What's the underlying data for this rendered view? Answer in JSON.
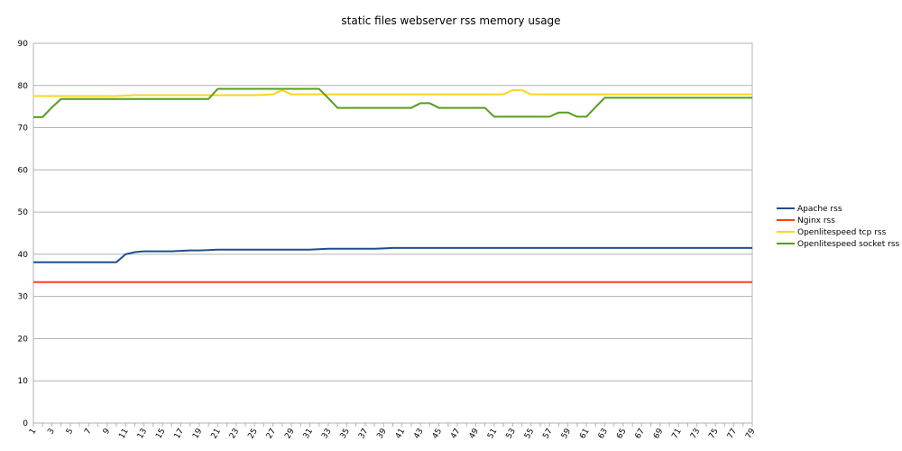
{
  "chart_data": {
    "type": "line",
    "title": "static files webserver rss memory usage",
    "xlabel": "",
    "ylabel": "",
    "ylim": [
      0,
      90
    ],
    "yticks": [
      0,
      10,
      20,
      30,
      40,
      50,
      60,
      70,
      80,
      90
    ],
    "x": [
      1,
      2,
      3,
      4,
      5,
      6,
      7,
      8,
      9,
      10,
      11,
      12,
      13,
      14,
      15,
      16,
      17,
      18,
      19,
      20,
      21,
      22,
      23,
      24,
      25,
      26,
      27,
      28,
      29,
      30,
      31,
      32,
      33,
      34,
      35,
      36,
      37,
      38,
      39,
      40,
      41,
      42,
      43,
      44,
      45,
      46,
      47,
      48,
      49,
      50,
      51,
      52,
      53,
      54,
      55,
      56,
      57,
      58,
      59,
      60,
      61,
      62,
      63,
      64,
      65,
      66,
      67,
      68,
      69,
      70,
      71,
      72,
      73,
      74,
      75,
      76,
      77,
      78,
      79
    ],
    "xtick_labels": [
      "1",
      "3",
      "5",
      "7",
      "9",
      "11",
      "13",
      "15",
      "17",
      "19",
      "21",
      "23",
      "25",
      "27",
      "29",
      "31",
      "33",
      "35",
      "37",
      "39",
      "41",
      "43",
      "45",
      "47",
      "49",
      "51",
      "53",
      "55",
      "57",
      "59",
      "61",
      "63",
      "65",
      "67",
      "69",
      "71",
      "73",
      "75",
      "77",
      "79"
    ],
    "grid": true,
    "legend_position": "right",
    "series": [
      {
        "name": "Apache rss",
        "color": "#1f4e8c",
        "values": [
          38.1,
          38.1,
          38.1,
          38.1,
          38.1,
          38.1,
          38.1,
          38.1,
          38.1,
          38.1,
          40.0,
          40.5,
          40.7,
          40.7,
          40.7,
          40.7,
          40.8,
          40.9,
          40.9,
          41.0,
          41.1,
          41.1,
          41.1,
          41.1,
          41.1,
          41.1,
          41.1,
          41.1,
          41.1,
          41.1,
          41.1,
          41.2,
          41.3,
          41.3,
          41.3,
          41.3,
          41.3,
          41.3,
          41.4,
          41.5,
          41.5,
          41.5,
          41.5,
          41.5,
          41.5,
          41.5,
          41.5,
          41.5,
          41.5,
          41.5,
          41.5,
          41.5,
          41.5,
          41.5,
          41.5,
          41.5,
          41.5,
          41.5,
          41.5,
          41.5,
          41.5,
          41.5,
          41.5,
          41.5,
          41.5,
          41.5,
          41.5,
          41.5,
          41.5,
          41.5,
          41.5,
          41.5,
          41.5,
          41.5,
          41.5,
          41.5,
          41.5,
          41.5,
          41.5
        ]
      },
      {
        "name": "Nginx rss",
        "color": "#ff420e",
        "values": [
          33.4,
          33.4,
          33.4,
          33.4,
          33.4,
          33.4,
          33.4,
          33.4,
          33.4,
          33.4,
          33.4,
          33.4,
          33.4,
          33.4,
          33.4,
          33.4,
          33.4,
          33.4,
          33.4,
          33.4,
          33.4,
          33.4,
          33.4,
          33.4,
          33.4,
          33.4,
          33.4,
          33.4,
          33.4,
          33.4,
          33.4,
          33.4,
          33.4,
          33.4,
          33.4,
          33.4,
          33.4,
          33.4,
          33.4,
          33.4,
          33.4,
          33.4,
          33.4,
          33.4,
          33.4,
          33.4,
          33.4,
          33.4,
          33.4,
          33.4,
          33.4,
          33.4,
          33.4,
          33.4,
          33.4,
          33.4,
          33.4,
          33.4,
          33.4,
          33.4,
          33.4,
          33.4,
          33.4,
          33.4,
          33.4,
          33.4,
          33.4,
          33.4,
          33.4,
          33.4,
          33.4,
          33.4,
          33.4,
          33.4,
          33.4,
          33.4,
          33.4,
          33.4,
          33.4
        ]
      },
      {
        "name": "Openlitespeed tcp rss",
        "color": "#ffd320",
        "values": [
          77.5,
          77.5,
          77.5,
          77.5,
          77.5,
          77.5,
          77.5,
          77.5,
          77.5,
          77.5,
          77.6,
          77.7,
          77.7,
          77.7,
          77.7,
          77.7,
          77.7,
          77.7,
          77.7,
          77.7,
          77.7,
          77.7,
          77.7,
          77.7,
          77.7,
          77.8,
          77.9,
          78.9,
          77.9,
          77.9,
          77.9,
          77.9,
          77.9,
          77.9,
          77.9,
          77.9,
          77.9,
          77.9,
          77.9,
          77.9,
          77.9,
          77.9,
          77.9,
          77.9,
          77.9,
          77.9,
          77.9,
          77.9,
          77.9,
          77.9,
          77.9,
          77.9,
          78.9,
          78.9,
          77.9,
          77.9,
          77.9,
          77.9,
          77.9,
          77.9,
          77.9,
          77.9,
          77.9,
          77.9,
          77.9,
          77.9,
          77.9,
          77.9,
          77.9,
          77.9,
          77.9,
          77.9,
          77.9,
          77.9,
          77.9,
          77.9,
          77.9,
          77.9,
          77.9
        ]
      },
      {
        "name": "Openlitespeed socket rss",
        "color": "#579d1c",
        "values": [
          72.5,
          72.5,
          74.8,
          76.8,
          76.8,
          76.8,
          76.8,
          76.8,
          76.8,
          76.8,
          76.8,
          76.8,
          76.8,
          76.8,
          76.8,
          76.8,
          76.8,
          76.8,
          76.8,
          76.8,
          79.2,
          79.2,
          79.2,
          79.2,
          79.2,
          79.2,
          79.2,
          79.2,
          79.2,
          79.2,
          79.2,
          79.2,
          77.0,
          74.7,
          74.7,
          74.7,
          74.7,
          74.7,
          74.7,
          74.7,
          74.7,
          74.7,
          75.8,
          75.8,
          74.7,
          74.7,
          74.7,
          74.7,
          74.7,
          74.7,
          72.6,
          72.6,
          72.6,
          72.6,
          72.6,
          72.6,
          72.6,
          73.6,
          73.6,
          72.6,
          72.6,
          74.9,
          77.1,
          77.1,
          77.1,
          77.1,
          77.1,
          77.1,
          77.1,
          77.1,
          77.1,
          77.1,
          77.1,
          77.1,
          77.1,
          77.1,
          77.1,
          77.1,
          77.1
        ]
      }
    ]
  }
}
